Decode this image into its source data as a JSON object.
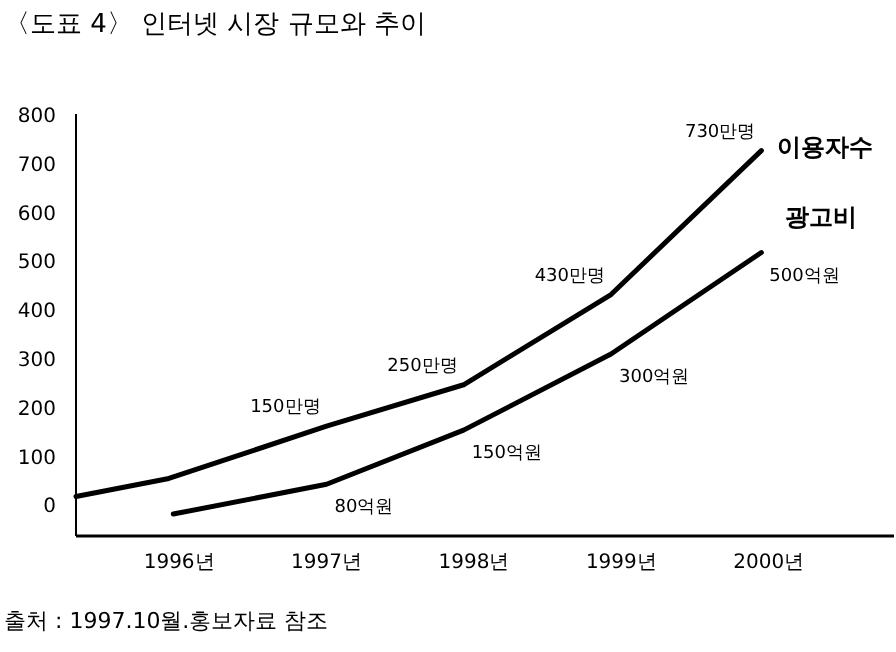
{
  "chart_data": {
    "type": "line",
    "title": "〈도표 4〉 인터넷 시장 규모와 추이",
    "xlim": [
      1995.3,
      2000.85
    ],
    "ylim": [
      -65,
      800
    ],
    "xticks": [
      {
        "value": 1996,
        "label": "1996년"
      },
      {
        "value": 1997,
        "label": "1997년"
      },
      {
        "value": 1998,
        "label": "1998년"
      },
      {
        "value": 1999,
        "label": "1999년"
      },
      {
        "value": 2000,
        "label": "2000년"
      }
    ],
    "yticks": [
      0,
      100,
      200,
      300,
      400,
      500,
      600,
      700,
      800
    ],
    "grid": false,
    "marker": "none",
    "line_style": "solid",
    "series": [
      {
        "name": "이용자수",
        "color": "#000000",
        "x": [
          1995.3,
          1995.93,
          1997,
          1997.93,
          1998.93,
          1999.95
        ],
        "values": [
          16,
          53,
          160,
          245,
          430,
          725
        ]
      },
      {
        "name": "광고비",
        "color": "#000000",
        "x": [
          1995.96,
          1997,
          1997.93,
          1998.93,
          1999.95
        ],
        "values": [
          -20,
          41,
          152,
          308,
          516
        ]
      }
    ],
    "annotations": [
      {
        "text": "150만명",
        "x": 1997,
        "y": 160
      },
      {
        "text": "250만명",
        "x": 1997.93,
        "y": 245
      },
      {
        "text": "430만명",
        "x": 1998.93,
        "y": 430
      },
      {
        "text": "730만명",
        "x": 1999.95,
        "y": 725
      },
      {
        "text": "80억원",
        "x": 1997,
        "y": 41
      },
      {
        "text": "150억원",
        "x": 1997.93,
        "y": 152
      },
      {
        "text": "300억원",
        "x": 1998.93,
        "y": 308
      },
      {
        "text": "500억원",
        "x": 1999.95,
        "y": 516
      },
      "출처 : 1997.10월.홍보자료 참조"
    ]
  }
}
